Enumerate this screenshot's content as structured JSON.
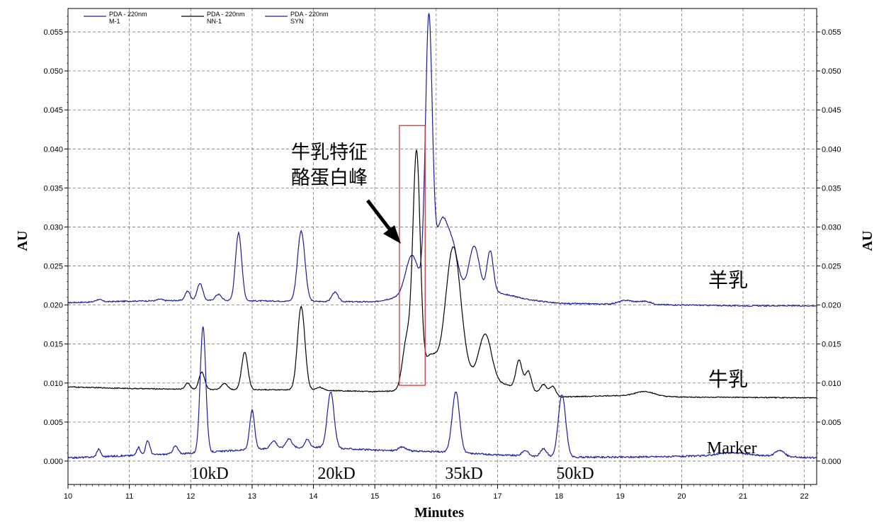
{
  "chart_data": {
    "type": "line",
    "xlabel": "Minutes",
    "ylabel": "AU",
    "ylabel_right": "AU",
    "xlim": [
      10,
      22.2
    ],
    "ylim": [
      -0.003,
      0.058
    ],
    "x_ticks": [
      "10",
      "11",
      "12",
      "13",
      "14",
      "15",
      "16",
      "17",
      "18",
      "19",
      "20",
      "21",
      "22"
    ],
    "y_ticks": [
      "0.000",
      "0.005",
      "0.010",
      "0.015",
      "0.020",
      "0.025",
      "0.030",
      "0.035",
      "0.040",
      "0.045",
      "0.050",
      "0.055"
    ],
    "grid": "dashed",
    "legend": {
      "placement": "top-left",
      "entries": [
        {
          "line1": "PDA - 220nm",
          "line2": "M-1",
          "color": "#1a1aa0"
        },
        {
          "line1": "PDA - 220nm",
          "line2": "NN-1",
          "color": "#000000"
        },
        {
          "line1": "PDA - 220nm",
          "line2": "SYN",
          "color": "#1a1aa0"
        }
      ]
    },
    "series": [
      {
        "name": "M-1",
        "color": "#1a1aa0",
        "baseline": [
          [
            10,
            0.0203
          ],
          [
            11,
            0.0205
          ],
          [
            12,
            0.0206
          ],
          [
            15,
            0.0204
          ],
          [
            15.5,
            0.0212
          ],
          [
            16,
            0.0228
          ],
          [
            17,
            0.0216
          ],
          [
            17.5,
            0.0207
          ],
          [
            18,
            0.0202
          ],
          [
            19,
            0.0201
          ],
          [
            20,
            0.02
          ],
          [
            21,
            0.0199
          ],
          [
            22.2,
            0.0199
          ]
        ],
        "peaks": [
          [
            10.5,
            0.0003,
            0.05
          ],
          [
            11.5,
            0.0002,
            0.04
          ],
          [
            11.95,
            0.0012,
            0.04
          ],
          [
            12.15,
            0.0022,
            0.045
          ],
          [
            12.45,
            0.0008,
            0.05
          ],
          [
            12.78,
            0.0087,
            0.05
          ],
          [
            13.8,
            0.009,
            0.06
          ],
          [
            14.35,
            0.0012,
            0.05
          ],
          [
            15.6,
            0.0048,
            0.1
          ],
          [
            15.88,
            0.0342,
            0.055
          ],
          [
            16.1,
            0.0082,
            0.1
          ],
          [
            16.28,
            0.004,
            0.08
          ],
          [
            16.62,
            0.0055,
            0.08
          ],
          [
            16.88,
            0.0052,
            0.05
          ],
          [
            19.1,
            0.0005,
            0.12
          ],
          [
            19.4,
            0.0004,
            0.1
          ]
        ],
        "noise": 0.00015
      },
      {
        "name": "NN-1",
        "color": "#000000",
        "baseline": [
          [
            10,
            0.0095
          ],
          [
            11,
            0.0093
          ],
          [
            12,
            0.0092
          ],
          [
            14,
            0.0091
          ],
          [
            15,
            0.0089
          ],
          [
            15.4,
            0.009
          ],
          [
            16,
            0.012
          ],
          [
            16.8,
            0.0105
          ],
          [
            17.5,
            0.009
          ],
          [
            18,
            0.0082
          ],
          [
            19,
            0.0084
          ],
          [
            20,
            0.0082
          ],
          [
            22.2,
            0.0081
          ]
        ],
        "peaks": [
          [
            11.95,
            0.0008,
            0.04
          ],
          [
            12.18,
            0.0022,
            0.045
          ],
          [
            12.55,
            0.0008,
            0.05
          ],
          [
            12.88,
            0.0048,
            0.05
          ],
          [
            13.8,
            0.0107,
            0.06
          ],
          [
            14.1,
            0.0004,
            0.05
          ],
          [
            15.52,
            0.006,
            0.07
          ],
          [
            15.68,
            0.029,
            0.06
          ],
          [
            15.9,
            0.002,
            0.08
          ],
          [
            16.28,
            0.016,
            0.12
          ],
          [
            16.8,
            0.0058,
            0.1
          ],
          [
            17.35,
            0.0036,
            0.05
          ],
          [
            17.5,
            0.0025,
            0.05
          ],
          [
            17.75,
            0.0012,
            0.05
          ],
          [
            17.9,
            0.0012,
            0.05
          ],
          [
            19.4,
            0.0006,
            0.15
          ]
        ],
        "noise": 0.00012
      },
      {
        "name": "SYN",
        "color": "#1a1aa0",
        "baseline": [
          [
            10,
            0.0004
          ],
          [
            11,
            0.0007
          ],
          [
            12,
            0.001
          ],
          [
            13,
            0.0015
          ],
          [
            14,
            0.0018
          ],
          [
            15,
            0.0014
          ],
          [
            16,
            0.0012
          ],
          [
            17,
            0.0008
          ],
          [
            18,
            0.0005
          ],
          [
            19,
            0.0005
          ],
          [
            20,
            0.0006
          ],
          [
            21,
            0.0008
          ],
          [
            22.2,
            0.0004
          ]
        ],
        "peaks": [
          [
            10.5,
            0.001,
            0.03
          ],
          [
            11.15,
            0.001,
            0.03
          ],
          [
            11.3,
            0.0018,
            0.035
          ],
          [
            11.75,
            0.001,
            0.04
          ],
          [
            12.2,
            0.0162,
            0.045
          ],
          [
            13.0,
            0.005,
            0.04
          ],
          [
            13.35,
            0.001,
            0.05
          ],
          [
            13.6,
            0.0012,
            0.05
          ],
          [
            13.9,
            0.001,
            0.04
          ],
          [
            14.28,
            0.0072,
            0.055
          ],
          [
            15.45,
            0.0005,
            0.06
          ],
          [
            16.32,
            0.0078,
            0.06
          ],
          [
            17.45,
            0.0007,
            0.05
          ],
          [
            17.75,
            0.001,
            0.05
          ],
          [
            18.05,
            0.008,
            0.06
          ],
          [
            20.8,
            0.0003,
            0.2
          ],
          [
            21.6,
            0.0008,
            0.07
          ]
        ],
        "noise": 0.0002
      }
    ],
    "annotations": {
      "series_labels": [
        "羊乳",
        "牛乳",
        "Marker"
      ],
      "marker_labels": [
        "10kD",
        "20kD",
        "35kD",
        "50kD"
      ],
      "callout_line1": "牛乳特征",
      "callout_line2": "酪蛋白峰",
      "highlight_box_x": [
        15.4,
        15.82
      ],
      "highlight_box_y": [
        0.0097,
        0.043
      ],
      "highlight_color": "#e03030"
    }
  }
}
